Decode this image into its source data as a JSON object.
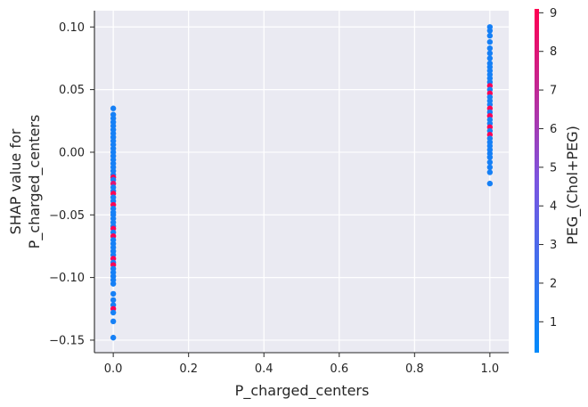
{
  "chart_data": {
    "type": "scatter",
    "title": "",
    "xlabel": "P_charged_centers",
    "ylabel_lines": [
      "SHAP value for",
      "P_charged_centers"
    ],
    "xlim": [
      -0.05,
      1.05
    ],
    "ylim": [
      -0.16,
      0.113
    ],
    "xticks": [
      0.0,
      0.2,
      0.4,
      0.6,
      0.8,
      1.0
    ],
    "xtick_labels": [
      "0.0",
      "0.2",
      "0.4",
      "0.6",
      "0.8",
      "1.0"
    ],
    "yticks": [
      -0.15,
      -0.1,
      -0.05,
      0.0,
      0.05,
      0.1
    ],
    "ytick_labels": [
      "−0.15",
      "−0.10",
      "−0.05",
      "0.00",
      "0.05",
      "0.10"
    ],
    "grid": true,
    "colorbar": {
      "label": "PEG_(Chol+PEG)",
      "range": [
        0.2,
        9.1
      ],
      "ticks": [
        1,
        2,
        3,
        4,
        5,
        6,
        7,
        8,
        9
      ],
      "tick_labels": [
        "1",
        "2",
        "3",
        "4",
        "5",
        "6",
        "7",
        "8",
        "9"
      ],
      "colormap": [
        "#008afb",
        "#7a55e0",
        "#ff0052"
      ]
    },
    "points": [
      {
        "x": 0,
        "y": 0.035,
        "c": 1
      },
      {
        "x": 0,
        "y": 0.03,
        "c": 1
      },
      {
        "x": 0,
        "y": 0.027,
        "c": 1
      },
      {
        "x": 0,
        "y": 0.024,
        "c": 1
      },
      {
        "x": 0,
        "y": 0.021,
        "c": 1
      },
      {
        "x": 0,
        "y": 0.018,
        "c": 1
      },
      {
        "x": 0,
        "y": 0.015,
        "c": 1
      },
      {
        "x": 0,
        "y": 0.012,
        "c": 1
      },
      {
        "x": 0,
        "y": 0.009,
        "c": 1
      },
      {
        "x": 0,
        "y": 0.006,
        "c": 1
      },
      {
        "x": 0,
        "y": 0.003,
        "c": 1
      },
      {
        "x": 0,
        "y": 0.0,
        "c": 1
      },
      {
        "x": 0,
        "y": -0.003,
        "c": 1
      },
      {
        "x": 0,
        "y": -0.006,
        "c": 1
      },
      {
        "x": 0,
        "y": -0.009,
        "c": 1
      },
      {
        "x": 0,
        "y": -0.012,
        "c": 1
      },
      {
        "x": 0,
        "y": -0.015,
        "c": 1
      },
      {
        "x": 0,
        "y": -0.018,
        "c": 1
      },
      {
        "x": 0,
        "y": -0.02,
        "c": 9
      },
      {
        "x": 0,
        "y": -0.022,
        "c": 1
      },
      {
        "x": 0,
        "y": -0.025,
        "c": 8
      },
      {
        "x": 0,
        "y": -0.028,
        "c": 1
      },
      {
        "x": 0,
        "y": -0.031,
        "c": 1
      },
      {
        "x": 0,
        "y": -0.033,
        "c": 9
      },
      {
        "x": 0,
        "y": -0.036,
        "c": 1
      },
      {
        "x": 0,
        "y": -0.039,
        "c": 1
      },
      {
        "x": 0,
        "y": -0.042,
        "c": 9
      },
      {
        "x": 0,
        "y": -0.045,
        "c": 1
      },
      {
        "x": 0,
        "y": -0.048,
        "c": 1
      },
      {
        "x": 0,
        "y": -0.05,
        "c": 1
      },
      {
        "x": 0,
        "y": -0.053,
        "c": 1
      },
      {
        "x": 0,
        "y": -0.056,
        "c": 1
      },
      {
        "x": 0,
        "y": -0.059,
        "c": 1
      },
      {
        "x": 0,
        "y": -0.061,
        "c": 9
      },
      {
        "x": 0,
        "y": -0.064,
        "c": 1
      },
      {
        "x": 0,
        "y": -0.067,
        "c": 9
      },
      {
        "x": 0,
        "y": -0.07,
        "c": 1
      },
      {
        "x": 0,
        "y": -0.073,
        "c": 1
      },
      {
        "x": 0,
        "y": -0.076,
        "c": 1
      },
      {
        "x": 0,
        "y": -0.079,
        "c": 1
      },
      {
        "x": 0,
        "y": -0.082,
        "c": 1
      },
      {
        "x": 0,
        "y": -0.085,
        "c": 9
      },
      {
        "x": 0,
        "y": -0.088,
        "c": 1
      },
      {
        "x": 0,
        "y": -0.09,
        "c": 9
      },
      {
        "x": 0,
        "y": -0.093,
        "c": 1
      },
      {
        "x": 0,
        "y": -0.096,
        "c": 1
      },
      {
        "x": 0,
        "y": -0.099,
        "c": 1
      },
      {
        "x": 0,
        "y": -0.102,
        "c": 1
      },
      {
        "x": 0,
        "y": -0.105,
        "c": 1
      },
      {
        "x": 0,
        "y": -0.113,
        "c": 1
      },
      {
        "x": 0,
        "y": -0.118,
        "c": 1
      },
      {
        "x": 0,
        "y": -0.122,
        "c": 1
      },
      {
        "x": 0,
        "y": -0.125,
        "c": 9
      },
      {
        "x": 0,
        "y": -0.128,
        "c": 1
      },
      {
        "x": 0,
        "y": -0.135,
        "c": 1
      },
      {
        "x": 0,
        "y": -0.148,
        "c": 1
      },
      {
        "x": 1,
        "y": 0.1,
        "c": 1
      },
      {
        "x": 1,
        "y": 0.097,
        "c": 1
      },
      {
        "x": 1,
        "y": 0.093,
        "c": 1
      },
      {
        "x": 1,
        "y": 0.088,
        "c": 1
      },
      {
        "x": 1,
        "y": 0.083,
        "c": 1
      },
      {
        "x": 1,
        "y": 0.079,
        "c": 1
      },
      {
        "x": 1,
        "y": 0.075,
        "c": 1
      },
      {
        "x": 1,
        "y": 0.071,
        "c": 1
      },
      {
        "x": 1,
        "y": 0.068,
        "c": 1
      },
      {
        "x": 1,
        "y": 0.065,
        "c": 1
      },
      {
        "x": 1,
        "y": 0.062,
        "c": 1
      },
      {
        "x": 1,
        "y": 0.059,
        "c": 1
      },
      {
        "x": 1,
        "y": 0.056,
        "c": 1
      },
      {
        "x": 1,
        "y": 0.053,
        "c": 9
      },
      {
        "x": 1,
        "y": 0.05,
        "c": 1
      },
      {
        "x": 1,
        "y": 0.047,
        "c": 9
      },
      {
        "x": 1,
        "y": 0.044,
        "c": 1
      },
      {
        "x": 1,
        "y": 0.041,
        "c": 1
      },
      {
        "x": 1,
        "y": 0.038,
        "c": 1
      },
      {
        "x": 1,
        "y": 0.035,
        "c": 9
      },
      {
        "x": 1,
        "y": 0.032,
        "c": 1
      },
      {
        "x": 1,
        "y": 0.029,
        "c": 9
      },
      {
        "x": 1,
        "y": 0.026,
        "c": 1
      },
      {
        "x": 1,
        "y": 0.023,
        "c": 1
      },
      {
        "x": 1,
        "y": 0.02,
        "c": 9
      },
      {
        "x": 1,
        "y": 0.017,
        "c": 1
      },
      {
        "x": 1,
        "y": 0.014,
        "c": 9
      },
      {
        "x": 1,
        "y": 0.011,
        "c": 1
      },
      {
        "x": 1,
        "y": 0.008,
        "c": 1
      },
      {
        "x": 1,
        "y": 0.005,
        "c": 1
      },
      {
        "x": 1,
        "y": 0.002,
        "c": 1
      },
      {
        "x": 1,
        "y": -0.001,
        "c": 1
      },
      {
        "x": 1,
        "y": -0.004,
        "c": 1
      },
      {
        "x": 1,
        "y": -0.008,
        "c": 1
      },
      {
        "x": 1,
        "y": -0.012,
        "c": 1
      },
      {
        "x": 1,
        "y": -0.016,
        "c": 1
      },
      {
        "x": 1,
        "y": -0.025,
        "c": 1
      }
    ]
  }
}
